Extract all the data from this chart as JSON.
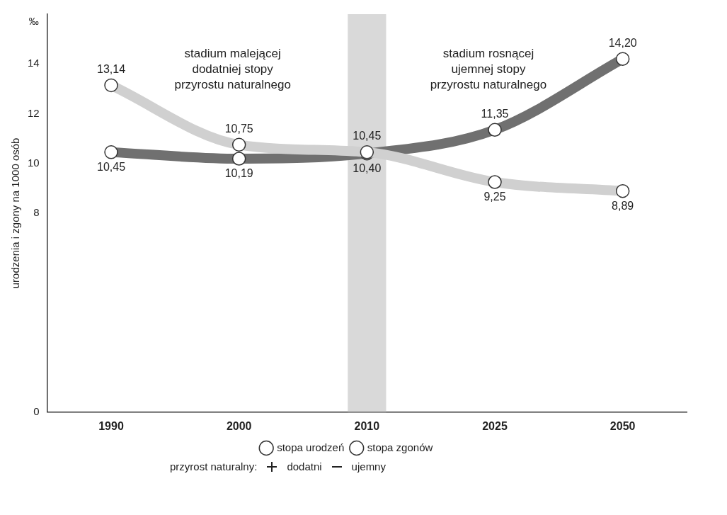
{
  "chart_data": {
    "type": "line",
    "ylabel": "urodzenia i zgony na 1000 osób",
    "categories": [
      "1990",
      "2000",
      "2010",
      "2025",
      "2050"
    ],
    "series": [
      {
        "name": "stopa urodzeń",
        "color": "#d0d0d0",
        "values": [
          13.14,
          10.75,
          10.45,
          9.25,
          8.89
        ],
        "value_labels": [
          "13,14",
          "10,75",
          "10,45",
          "9,25",
          "8,89"
        ]
      },
      {
        "name": "stopa zgonów",
        "color": "#707070",
        "values": [
          10.45,
          10.19,
          10.4,
          11.35,
          14.2
        ],
        "value_labels": [
          "10,45",
          "10,19",
          "10,40",
          "11,35",
          "14,20"
        ]
      }
    ],
    "ylim": [
      0,
      16
    ],
    "yticks": [
      0,
      8,
      10,
      12,
      14
    ],
    "bands": [
      {
        "axis": "x",
        "from": "2010",
        "to": "2010",
        "color": "#bfbfbf"
      }
    ],
    "annotations": [
      "‰",
      "stadium malejącej dodatniej stopy przyrostu naturalnego",
      "stadium rosnącej ujemnej stopy przyrostu naturalnego",
      "przyrost naturalny:",
      "dodatni",
      "ujemny"
    ],
    "marker": "circle",
    "line_style": "solid",
    "grid": false,
    "legend": "bottom"
  }
}
